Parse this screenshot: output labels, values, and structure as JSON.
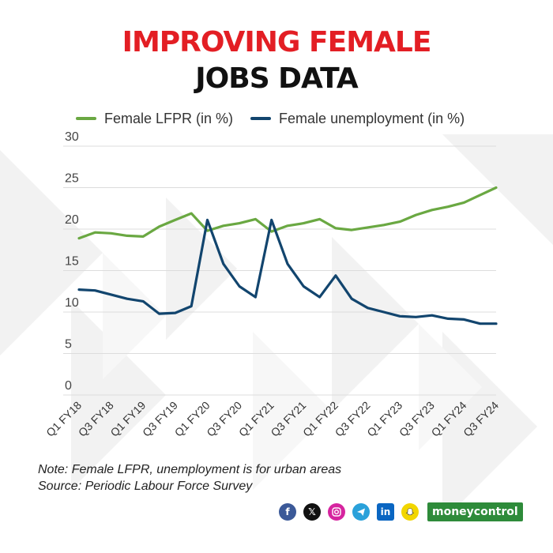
{
  "title_line1": "IMPROVING FEMALE",
  "title_line2": "JOBS DATA",
  "note": "Note: Female LFPR, unemployment is for urban areas",
  "source": "Source: Periodic Labour Force Survey",
  "brand": "moneycontrol",
  "social_icons": [
    "facebook-icon",
    "x-icon",
    "instagram-icon",
    "telegram-icon",
    "linkedin-icon",
    "snapchat-icon"
  ],
  "colors": {
    "title_red": "#e31e24",
    "lfpr": "#6aa842",
    "unemployment": "#12456e"
  },
  "chart_data": {
    "type": "line",
    "legend_position": "top",
    "grid": true,
    "ylim": [
      0,
      30
    ],
    "yticks": [
      0,
      5,
      10,
      15,
      20,
      25,
      30
    ],
    "x": [
      "Q1 FY18",
      "Q2 FY18",
      "Q3 FY18",
      "Q4 FY18",
      "Q1 FY19",
      "Q2 FY19",
      "Q3 FY19",
      "Q4 FY19",
      "Q1 FY20",
      "Q2 FY20",
      "Q3 FY20",
      "Q4 FY20",
      "Q1 FY21",
      "Q2 FY21",
      "Q3 FY21",
      "Q4 FY21",
      "Q1 FY22",
      "Q2 FY22",
      "Q3 FY22",
      "Q4 FY22",
      "Q1 FY23",
      "Q2 FY23",
      "Q3 FY23",
      "Q4 FY23",
      "Q1 FY24",
      "Q2 FY24",
      "Q3 FY24"
    ],
    "xtick_labels": [
      "Q1 FY18",
      "Q3 FY18",
      "Q1 FY19",
      "Q3 FY19",
      "Q1 FY20",
      "Q3 FY20",
      "Q1 FY21",
      "Q3 FY21",
      "Q1 FY22",
      "Q3 FY22",
      "Q1 FY23",
      "Q3 FY23",
      "Q1 FY24",
      "Q3 FY24"
    ],
    "series": [
      {
        "name": "Female LFPR (in %)",
        "color": "#6aa842",
        "values": [
          18.9,
          19.6,
          19.5,
          19.2,
          19.1,
          20.3,
          21.1,
          21.9,
          19.8,
          20.4,
          20.7,
          21.2,
          19.7,
          20.4,
          20.7,
          21.2,
          20.1,
          19.9,
          20.2,
          20.5,
          20.9,
          21.7,
          22.3,
          22.7,
          23.2,
          24.1,
          25.0
        ]
      },
      {
        "name": "Female unemployment (in %)",
        "color": "#12456e",
        "values": [
          12.7,
          12.6,
          12.1,
          11.6,
          11.3,
          9.8,
          9.9,
          10.7,
          21.1,
          15.8,
          13.1,
          11.8,
          21.1,
          15.8,
          13.1,
          11.8,
          14.4,
          11.6,
          10.5,
          10.0,
          9.5,
          9.4,
          9.6,
          9.2,
          9.1,
          8.6,
          8.6
        ]
      }
    ]
  }
}
